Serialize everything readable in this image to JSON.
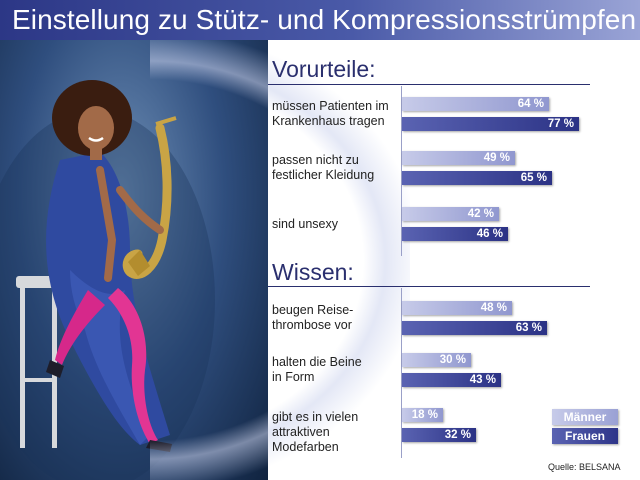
{
  "title": "Einstellung zu Stütz- und Kompressionsstrümpfen",
  "source": "Quelle: BELSANA",
  "legend": [
    {
      "name": "Männer",
      "color": "#9aa1d4"
    },
    {
      "name": "Frauen",
      "color": "#2e3589"
    }
  ],
  "photo": {
    "icon": "woman-with-saxophone-photo"
  },
  "colors": {
    "title_band": "#2c3786",
    "heading": "#2a2f6e",
    "men_bar": "#9aa1d4",
    "women_bar": "#2e3589"
  },
  "chart_data": [
    {
      "type": "bar",
      "orientation": "horizontal",
      "title": "Vorurteile:",
      "categories": [
        [
          "müssen Patienten im",
          "Krankenhaus tragen"
        ],
        [
          "passen nicht zu",
          "festlicher Kleidung"
        ],
        [
          "sind unsexy"
        ]
      ],
      "series": [
        {
          "name": "Männer",
          "values": [
            64,
            49,
            42
          ]
        },
        {
          "name": "Frauen",
          "values": [
            77,
            65,
            46
          ]
        }
      ],
      "unit": "%"
    },
    {
      "type": "bar",
      "orientation": "horizontal",
      "title": "Wissen:",
      "categories": [
        [
          "beugen Reise-",
          "thrombose vor"
        ],
        [
          "halten die Beine",
          "in Form"
        ],
        [
          "gibt es in vielen",
          "attraktiven",
          "Modefarben"
        ]
      ],
      "series": [
        {
          "name": "Männer",
          "values": [
            48,
            30,
            18
          ]
        },
        {
          "name": "Frauen",
          "values": [
            63,
            43,
            32
          ]
        }
      ],
      "unit": "%"
    }
  ]
}
